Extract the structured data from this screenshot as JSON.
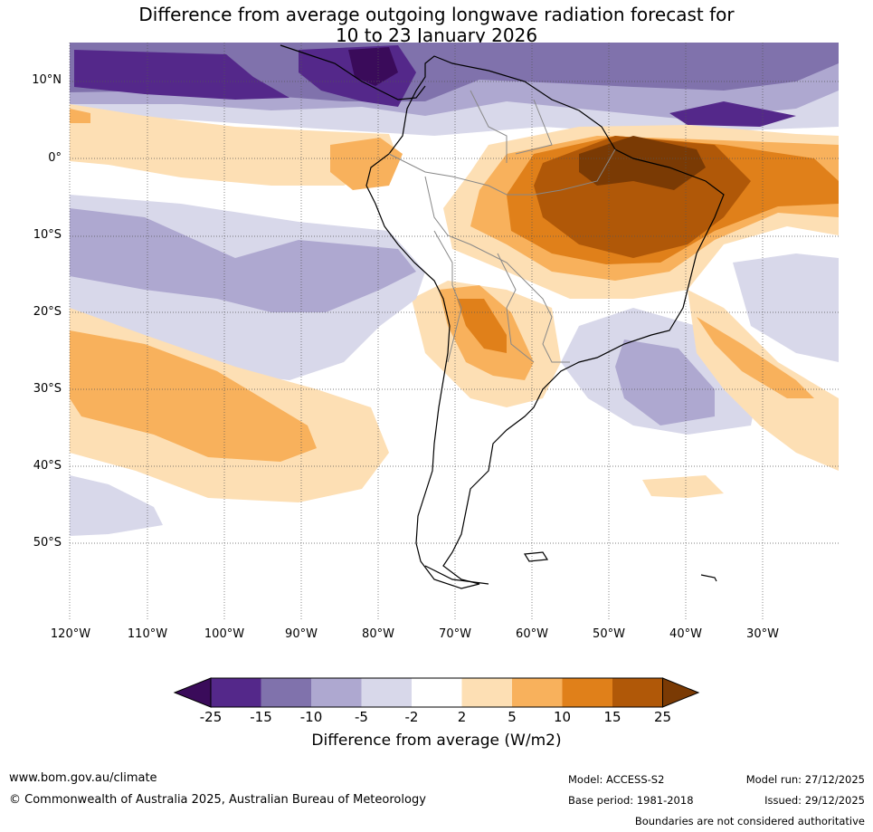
{
  "title": {
    "line1": "Difference from average outgoing longwave radiation forecast for",
    "line2": "10 to 23 January 2026"
  },
  "map": {
    "lat_labels": [
      "10°N",
      "0°",
      "10°S",
      "20°S",
      "30°S",
      "40°S",
      "50°S"
    ],
    "lon_labels": [
      "120°W",
      "110°W",
      "100°W",
      "90°W",
      "80°W",
      "70°W",
      "60°W",
      "50°W",
      "40°W",
      "30°W"
    ]
  },
  "colorbar": {
    "title": "Difference from average (W/m2)",
    "ticks": [
      "-25",
      "-15",
      "-10",
      "-5",
      "-2",
      "2",
      "5",
      "10",
      "15",
      "25"
    ],
    "colors": [
      "#3a0b5a",
      "#54288a",
      "#8072ac",
      "#aea8d0",
      "#d8d8ea",
      "#ffffff",
      "#fddfb4",
      "#f8b15c",
      "#e0801a",
      "#b05808",
      "#7a3a04"
    ]
  },
  "footer": {
    "website": "www.bom.gov.au/climate",
    "copyright": "© Commonwealth of Australia 2025, Australian Bureau of Meteorology",
    "model": "Model: ACCESS-S2",
    "base_period": "Base period: 1981-2018",
    "model_run": "Model run: 27/12/2025",
    "issued": "Issued: 29/12/2025",
    "disclaimer": "Boundaries are not considered authoritative"
  }
}
